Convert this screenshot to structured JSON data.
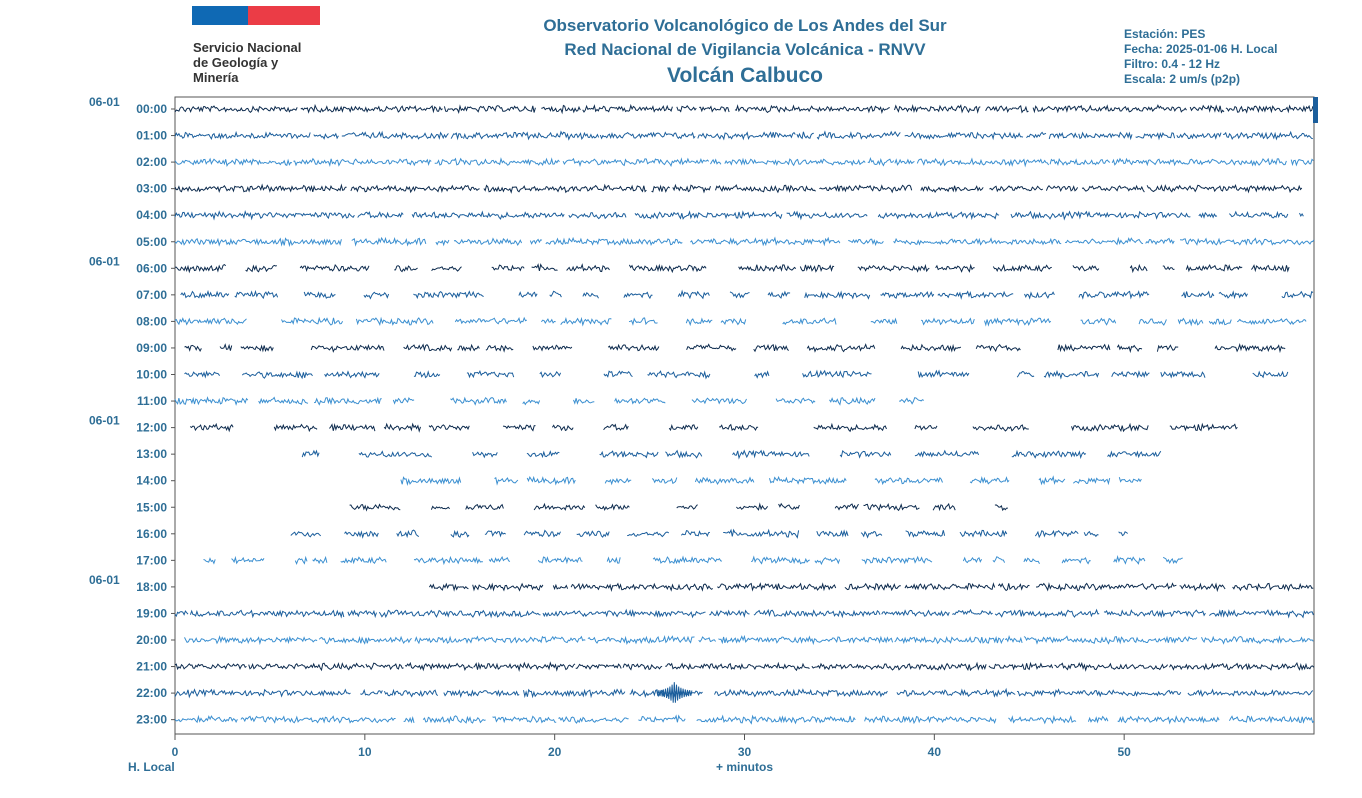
{
  "header": {
    "org_lines": [
      "Servicio Nacional",
      "de Geología y",
      "Minería"
    ],
    "title_line1": "Observatorio Volcanológico de Los Andes del Sur",
    "title_line2": "Red Nacional de Vigilancia Volcánica - RNVV",
    "title_line3": "Volcán Calbuco",
    "station": "Estación: PES",
    "date": "Fecha: 2025-01-06 H. Local",
    "filter": "Filtro: 0.4 - 12 Hz",
    "scale": "Escala: 2 um/s (p2p)"
  },
  "colors": {
    "title": "#2e6e96",
    "trace_dark": "#0d2b4e",
    "trace_mid": "#1b5e9c",
    "trace_light": "#3b8fd0",
    "flag_blue": "#0f69b4",
    "flag_red": "#eb3c46",
    "frame": "#555555"
  },
  "chart_data": {
    "type": "helicorder",
    "xlabel_left": "H. Local",
    "xlabel_center": "+ minutos",
    "x_range": [
      0,
      60
    ],
    "x_ticks": [
      0,
      10,
      20,
      30,
      40,
      50
    ],
    "hour_labels": [
      "00:00",
      "01:00",
      "02:00",
      "03:00",
      "04:00",
      "05:00",
      "06:00",
      "07:00",
      "08:00",
      "09:00",
      "10:00",
      "11:00",
      "12:00",
      "13:00",
      "14:00",
      "15:00",
      "16:00",
      "17:00",
      "18:00",
      "19:00",
      "20:00",
      "21:00",
      "22:00",
      "23:00"
    ],
    "date_labels": [
      {
        "row": 0,
        "label": "06-01"
      },
      {
        "row": 6,
        "label": "06-01"
      },
      {
        "row": 12,
        "label": "06-01"
      },
      {
        "row": 18,
        "label": "06-01"
      }
    ],
    "trace_colors": [
      "dark",
      "mid",
      "light"
    ],
    "data_coverage_minutes": [
      {
        "row": 0,
        "start": 0,
        "end": 60,
        "density": 0.92
      },
      {
        "row": 1,
        "start": 0,
        "end": 60,
        "density": 0.96
      },
      {
        "row": 2,
        "start": 0,
        "end": 60,
        "density": 0.94
      },
      {
        "row": 3,
        "start": 0,
        "end": 59.5,
        "density": 0.9
      },
      {
        "row": 4,
        "start": 0,
        "end": 59.5,
        "density": 0.85
      },
      {
        "row": 5,
        "start": 0,
        "end": 60,
        "density": 0.88
      },
      {
        "row": 6,
        "start": 0,
        "end": 59.5,
        "density": 0.62
      },
      {
        "row": 7,
        "start": 0.3,
        "end": 60,
        "density": 0.55
      },
      {
        "row": 8,
        "start": 0,
        "end": 60,
        "density": 0.5
      },
      {
        "row": 9,
        "start": 0.5,
        "end": 59.5,
        "density": 0.55
      },
      {
        "row": 10,
        "start": 0.5,
        "end": 60,
        "density": 0.4
      },
      {
        "row": 11,
        "start": 0,
        "end": 39.5,
        "density": 0.55
      },
      {
        "row": 12,
        "start": 0.8,
        "end": 56,
        "density": 0.3
      },
      {
        "row": 13,
        "start": 6.7,
        "end": 52.2,
        "density": 0.5
      },
      {
        "row": 14,
        "start": 11.9,
        "end": 51.5,
        "density": 0.6
      },
      {
        "row": 15,
        "start": 9.2,
        "end": 45.7,
        "density": 0.4
      },
      {
        "row": 16,
        "start": 6.1,
        "end": 50.2,
        "density": 0.6
      },
      {
        "row": 17,
        "start": 1.5,
        "end": 53.5,
        "density": 0.6
      },
      {
        "row": 18,
        "start": 13.4,
        "end": 60,
        "density": 0.88
      },
      {
        "row": 19,
        "start": 0,
        "end": 60,
        "density": 0.95
      },
      {
        "row": 20,
        "start": 0.5,
        "end": 60,
        "density": 0.95
      },
      {
        "row": 21,
        "start": 0,
        "end": 60,
        "density": 0.96
      },
      {
        "row": 22,
        "start": 0,
        "end": 60,
        "density": 0.85
      },
      {
        "row": 23,
        "start": 0,
        "end": 60,
        "density": 0.85
      }
    ],
    "events": [
      {
        "row": 22,
        "minute": 26.3,
        "label": ""
      }
    ]
  }
}
